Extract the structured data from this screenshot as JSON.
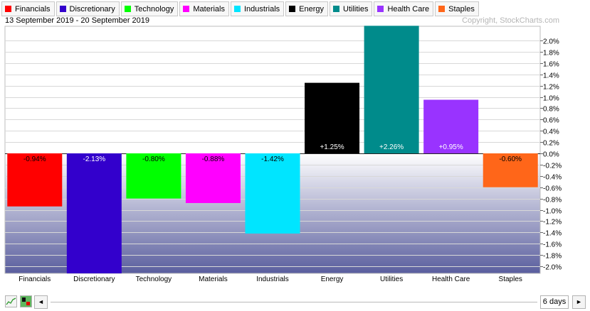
{
  "legend": [
    {
      "label": "Financials",
      "color": "#ff0000"
    },
    {
      "label": "Discretionary",
      "color": "#3300cc"
    },
    {
      "label": "Technology",
      "color": "#00ff00"
    },
    {
      "label": "Materials",
      "color": "#ff00ff"
    },
    {
      "label": "Industrials",
      "color": "#00e5ff"
    },
    {
      "label": "Energy",
      "color": "#000000"
    },
    {
      "label": "Utilities",
      "color": "#008b8b"
    },
    {
      "label": "Health Care",
      "color": "#9933ff"
    },
    {
      "label": "Staples",
      "color": "#ff6619"
    }
  ],
  "date_range": "13 September 2019 - 20 September 2019",
  "copyright": "Copyright, StockCharts.com",
  "chart_data": {
    "type": "bar",
    "categories": [
      "Financials",
      "Discretionary",
      "Technology",
      "Materials",
      "Industrials",
      "Energy",
      "Utilities",
      "Health Care",
      "Staples"
    ],
    "values": [
      -0.94,
      -2.13,
      -0.8,
      -0.88,
      -1.42,
      1.25,
      2.26,
      0.95,
      -0.6
    ],
    "value_labels": [
      "-0.94%",
      "-2.13%",
      "-0.80%",
      "-0.88%",
      "-1.42%",
      "+1.25%",
      "+2.26%",
      "+0.95%",
      "-0.60%"
    ],
    "colors": [
      "#ff0000",
      "#3300cc",
      "#00ff00",
      "#ff00ff",
      "#00e5ff",
      "#000000",
      "#008b8b",
      "#9933ff",
      "#ff6619"
    ],
    "ylim": [
      -2.15,
      2.3
    ],
    "yticks": [
      2.0,
      1.8,
      1.6,
      1.4,
      1.2,
      1.0,
      0.8,
      0.6,
      0.4,
      0.2,
      0.0,
      -0.2,
      -0.4,
      -0.6,
      -0.8,
      -1.0,
      -1.2,
      -1.4,
      -1.6,
      -1.8,
      -2.0
    ],
    "ytick_labels": [
      "2.0%",
      "1.8%",
      "1.6%",
      "1.4%",
      "1.2%",
      "1.0%",
      "0.8%",
      "0.6%",
      "0.4%",
      "0.2%",
      "0.0%",
      "-0.2%",
      "-0.4%",
      "-0.6%",
      "-0.8%",
      "-1.0%",
      "-1.2%",
      "-1.4%",
      "-1.6%",
      "-1.8%",
      "-2.0%"
    ],
    "y_axis_side": "right",
    "grid": true,
    "xlabel": "",
    "ylabel": ""
  },
  "footer": {
    "scroll_left_glyph": "◄",
    "scroll_right_glyph": "►",
    "period_label": "6 days"
  }
}
